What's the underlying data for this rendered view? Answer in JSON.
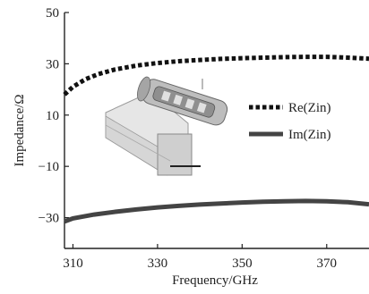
{
  "chart_data": {
    "type": "line",
    "title": "",
    "xlabel": "Frequency/GHz",
    "ylabel": "Impedance/Ω",
    "xlim": [
      308,
      380
    ],
    "ylim": [
      -42,
      50
    ],
    "x_ticks": [
      "310",
      "330",
      "350",
      "370"
    ],
    "y_ticks": [
      "50",
      "30",
      "10",
      "−10",
      "−30"
    ],
    "grid": false,
    "legend": "right",
    "series": [
      {
        "name": "Re(Zin)",
        "style": "dotted",
        "color": "#111111",
        "x": [
          308,
          310,
          313,
          316,
          320,
          325,
          330,
          335,
          340,
          345,
          350,
          355,
          360,
          365,
          370,
          375,
          380
        ],
        "y": [
          18,
          21,
          24,
          26,
          27.8,
          29.3,
          30.3,
          31,
          31.5,
          31.9,
          32.2,
          32.4,
          32.6,
          32.7,
          32.7,
          32.4,
          32.0
        ]
      },
      {
        "name": "Im(Zin)",
        "style": "solid",
        "color": "#444444",
        "x": [
          308,
          310,
          315,
          320,
          325,
          330,
          335,
          340,
          345,
          350,
          355,
          360,
          365,
          370,
          375,
          380
        ],
        "y": [
          -31.5,
          -30.3,
          -28.8,
          -27.7,
          -26.8,
          -26.0,
          -25.4,
          -24.9,
          -24.5,
          -24.1,
          -23.8,
          -23.6,
          -23.5,
          -23.6,
          -24.0,
          -24.8
        ]
      }
    ]
  },
  "inset": {
    "icon": "antenna-model-inset"
  }
}
